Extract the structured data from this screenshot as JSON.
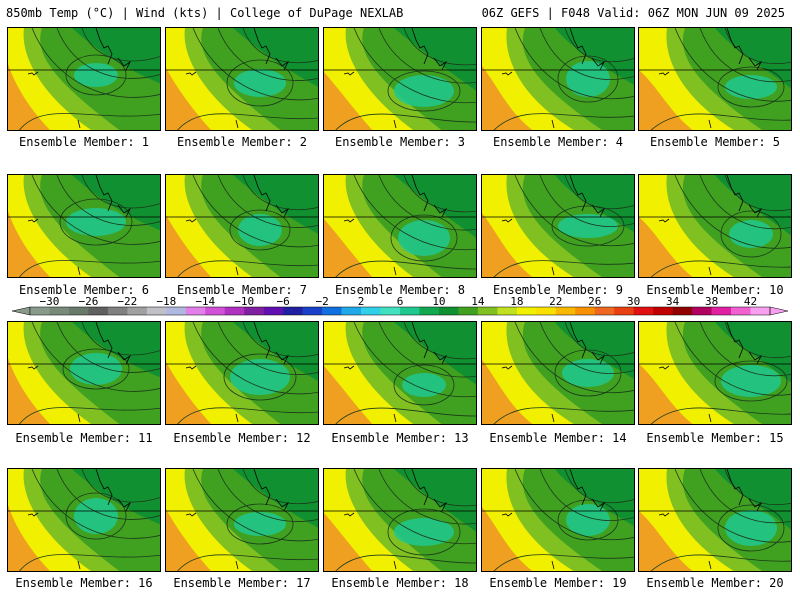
{
  "header": {
    "left": "850mb Temp (°C) | Wind (kts) | College of DuPage NEXLAB",
    "right": "06Z GEFS | F048 Valid: 06Z MON JUN 09 2025"
  },
  "members": [
    {
      "label": "Ensemble Member: 1"
    },
    {
      "label": "Ensemble Member: 2"
    },
    {
      "label": "Ensemble Member: 3"
    },
    {
      "label": "Ensemble Member: 4"
    },
    {
      "label": "Ensemble Member: 5"
    },
    {
      "label": "Ensemble Member: 6"
    },
    {
      "label": "Ensemble Member: 7"
    },
    {
      "label": "Ensemble Member: 8"
    },
    {
      "label": "Ensemble Member: 9"
    },
    {
      "label": "Ensemble Member: 10"
    },
    {
      "label": "Ensemble Member: 11"
    },
    {
      "label": "Ensemble Member: 12"
    },
    {
      "label": "Ensemble Member: 13"
    },
    {
      "label": "Ensemble Member: 14"
    },
    {
      "label": "Ensemble Member: 15"
    },
    {
      "label": "Ensemble Member: 16"
    },
    {
      "label": "Ensemble Member: 17"
    },
    {
      "label": "Ensemble Member: 18"
    },
    {
      "label": "Ensemble Member: 19"
    },
    {
      "label": "Ensemble Member: 20"
    }
  ],
  "colorbar": {
    "min": -32,
    "max": 44,
    "step": 2,
    "tick_labels": [
      "−30",
      "−26",
      "−22",
      "−18",
      "−14",
      "−10",
      "−6",
      "−2",
      "2",
      "6",
      "10",
      "14",
      "18",
      "22",
      "26",
      "30",
      "34",
      "38",
      "42"
    ],
    "colors": [
      "#8a9a8a",
      "#7a8a7a",
      "#6a7a6a",
      "#606060",
      "#808080",
      "#a0a0a0",
      "#c0c0c8",
      "#b0b8e0",
      "#e080e8",
      "#d050d8",
      "#b030c0",
      "#8020a0",
      "#6010b0",
      "#2020a0",
      "#1840c8",
      "#1070e0",
      "#20a8e8",
      "#30d0e8",
      "#40e0c0",
      "#20c890",
      "#10a850",
      "#109030",
      "#40a020",
      "#80c020",
      "#c0e020",
      "#f0f000",
      "#f8e000",
      "#f8b800",
      "#f89000",
      "#f06820",
      "#e84010",
      "#e01010",
      "#c00000",
      "#900000",
      "#b00060",
      "#e020a0",
      "#f060d0",
      "#f8a0f0"
    ]
  },
  "map_colors": {
    "warm_orange": "#f0a020",
    "warm_yellow": "#f0f000",
    "mid_green": "#80c020",
    "green": "#40a020",
    "dark_green": "#109030",
    "teal": "#20c890"
  }
}
